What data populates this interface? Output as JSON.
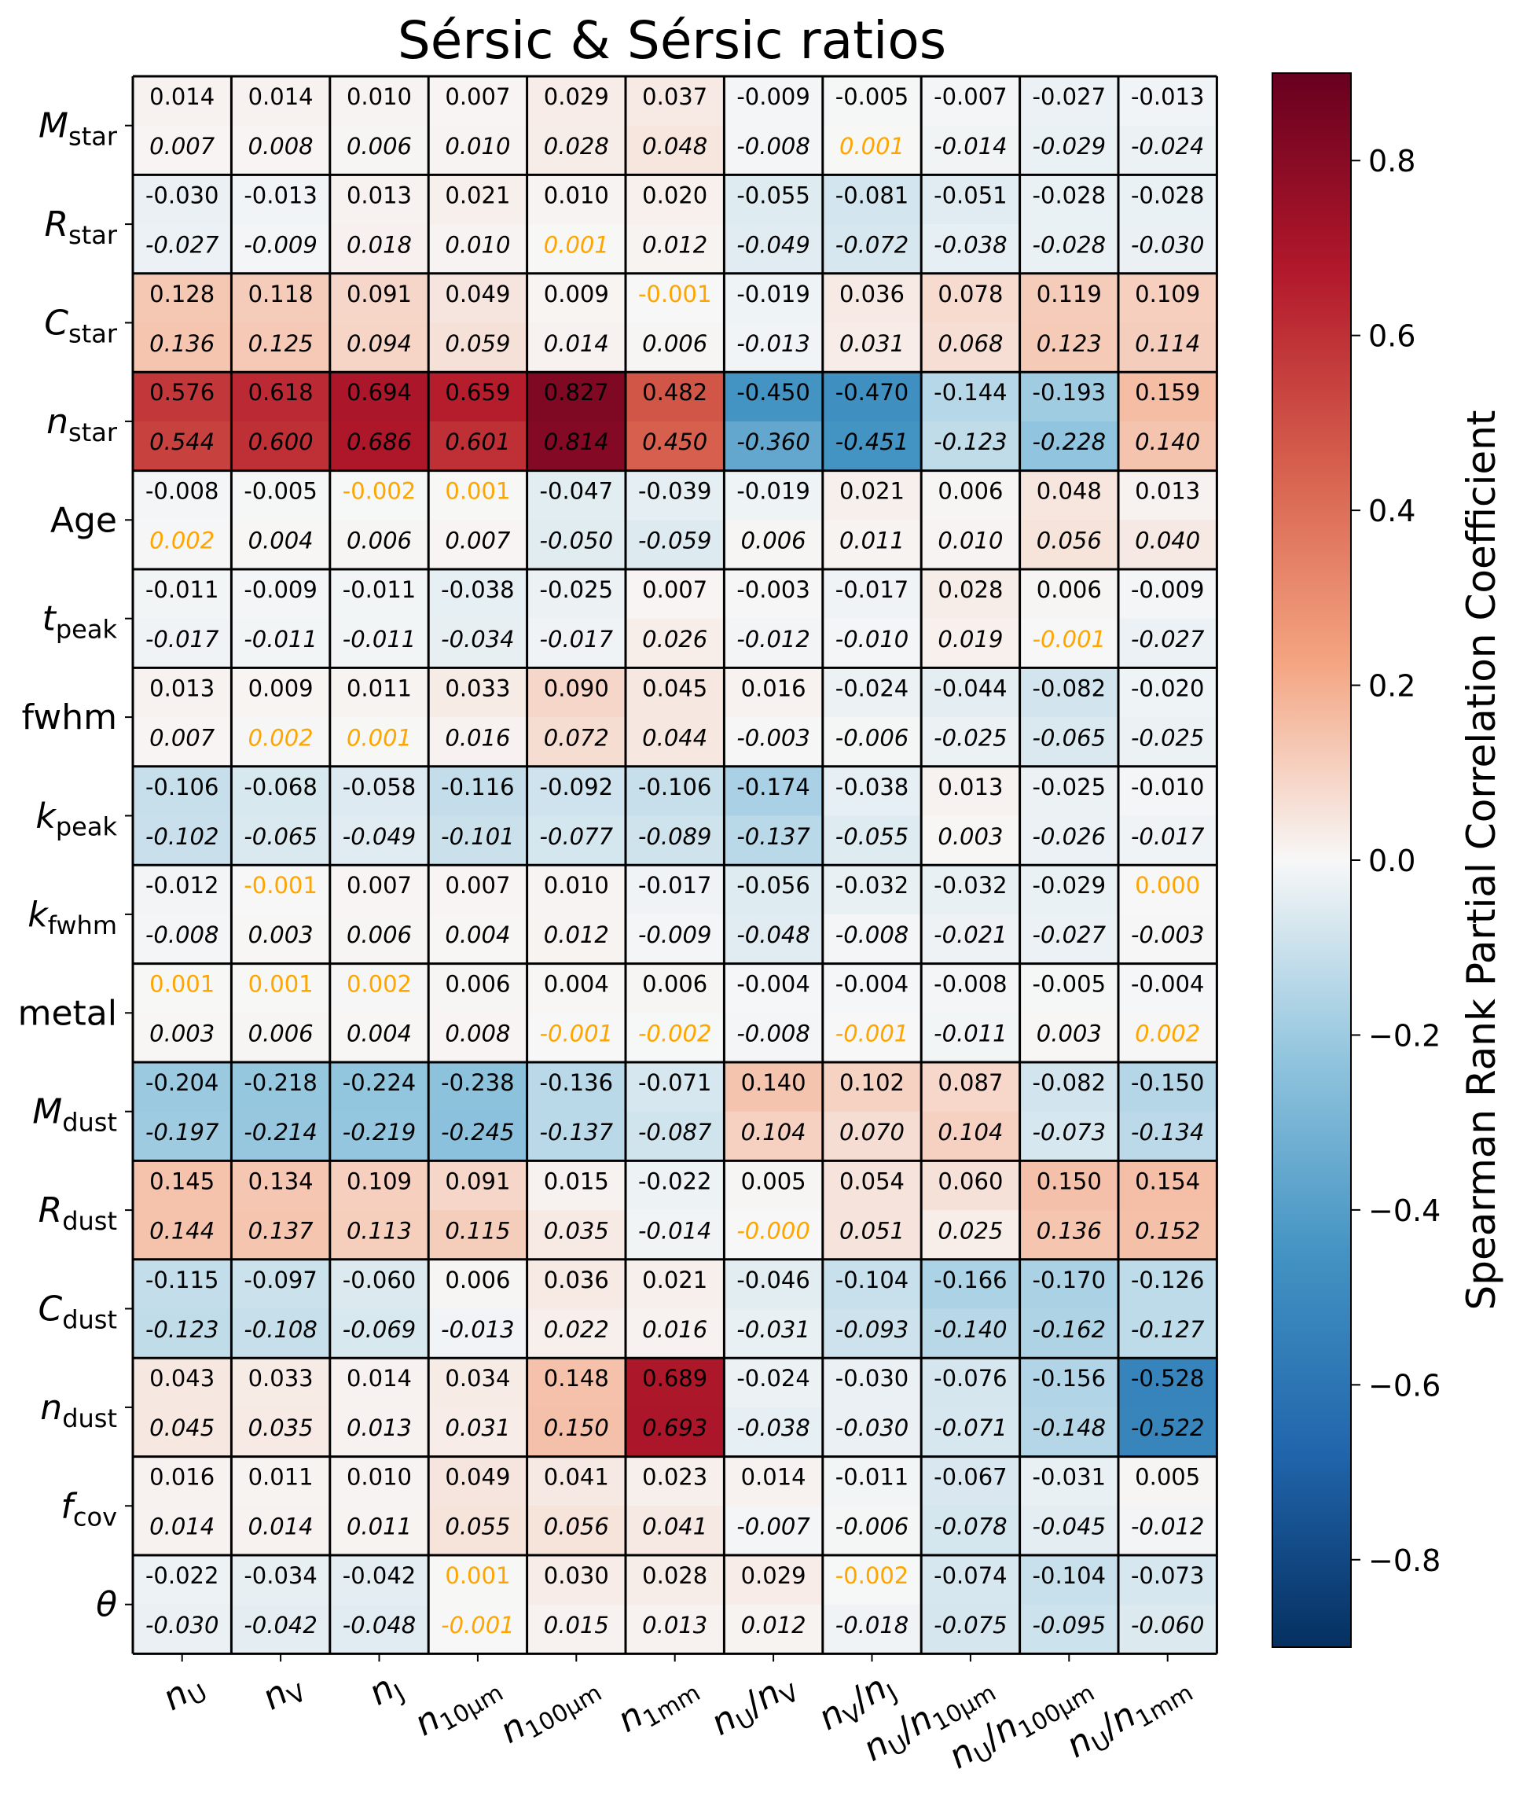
{
  "chart_data": {
    "type": "heatmap",
    "title": "Sérsic & Sérsic ratios",
    "colorbar_label": "Spearman Rank Partial Correlation Coefficient",
    "colorbar_ticks": [
      0.8,
      0.6,
      0.4,
      0.2,
      0.0,
      -0.2,
      -0.4,
      -0.6,
      -0.8
    ],
    "colorbar_tick_labels": [
      "0.8",
      "0.6",
      "0.4",
      "0.2",
      "0.0",
      "−0.2",
      "−0.4",
      "−0.6",
      "−0.8"
    ],
    "color_range": [
      -0.9,
      0.9
    ],
    "colormap": "RdBu_r",
    "highlight_color": "#FFA500",
    "rows": [
      {
        "sym": "M",
        "sub": "star"
      },
      {
        "sym": "R",
        "sub": "star"
      },
      {
        "sym": "C",
        "sub": "star"
      },
      {
        "sym": "n",
        "sub": "star"
      },
      {
        "text": "Age"
      },
      {
        "sym": "t",
        "sub": "peak"
      },
      {
        "text": "fwhm"
      },
      {
        "sym": "k",
        "sub": "peak"
      },
      {
        "sym": "k",
        "sub": "fwhm"
      },
      {
        "text": "metal"
      },
      {
        "sym": "M",
        "sub": "dust"
      },
      {
        "sym": "R",
        "sub": "dust"
      },
      {
        "sym": "C",
        "sub": "dust"
      },
      {
        "sym": "n",
        "sub": "dust"
      },
      {
        "sym": "f",
        "sub": "cov"
      },
      {
        "sym": "θ",
        "sub": ""
      }
    ],
    "columns": [
      {
        "parts": [
          {
            "t": "n",
            "i": true
          },
          {
            "t": "U",
            "s": true
          }
        ]
      },
      {
        "parts": [
          {
            "t": "n",
            "i": true
          },
          {
            "t": "V",
            "s": true
          }
        ]
      },
      {
        "parts": [
          {
            "t": "n",
            "i": true
          },
          {
            "t": "J",
            "s": true
          }
        ]
      },
      {
        "parts": [
          {
            "t": "n",
            "i": true
          },
          {
            "t": "10μm",
            "s": true
          }
        ]
      },
      {
        "parts": [
          {
            "t": "n",
            "i": true
          },
          {
            "t": "100μm",
            "s": true
          }
        ]
      },
      {
        "parts": [
          {
            "t": "n",
            "i": true
          },
          {
            "t": "1mm",
            "s": true
          }
        ]
      },
      {
        "parts": [
          {
            "t": "n",
            "i": true
          },
          {
            "t": "U",
            "s": true
          },
          {
            "t": "/"
          },
          {
            "t": "n",
            "i": true
          },
          {
            "t": "V",
            "s": true
          }
        ]
      },
      {
        "parts": [
          {
            "t": "n",
            "i": true
          },
          {
            "t": "V",
            "s": true
          },
          {
            "t": "/"
          },
          {
            "t": "n",
            "i": true
          },
          {
            "t": "J",
            "s": true
          }
        ]
      },
      {
        "parts": [
          {
            "t": "n",
            "i": true
          },
          {
            "t": "U",
            "s": true
          },
          {
            "t": "/"
          },
          {
            "t": "n",
            "i": true
          },
          {
            "t": "10μm",
            "s": true
          }
        ]
      },
      {
        "parts": [
          {
            "t": "n",
            "i": true
          },
          {
            "t": "U",
            "s": true
          },
          {
            "t": "/"
          },
          {
            "t": "n",
            "i": true
          },
          {
            "t": "100μm",
            "s": true
          }
        ]
      },
      {
        "parts": [
          {
            "t": "n",
            "i": true
          },
          {
            "t": "U",
            "s": true
          },
          {
            "t": "/"
          },
          {
            "t": "n",
            "i": true
          },
          {
            "t": "1mm",
            "s": true
          }
        ]
      }
    ],
    "top_values": [
      [
        "0.014",
        "0.014",
        "0.010",
        "0.007",
        "0.029",
        "0.037",
        "-0.009",
        "-0.005",
        "-0.007",
        "-0.027",
        "-0.013"
      ],
      [
        "-0.030",
        "-0.013",
        "0.013",
        "0.021",
        "0.010",
        "0.020",
        "-0.055",
        "-0.081",
        "-0.051",
        "-0.028",
        "-0.028"
      ],
      [
        "0.128",
        "0.118",
        "0.091",
        "0.049",
        "0.009",
        "-0.001",
        "-0.019",
        "0.036",
        "0.078",
        "0.119",
        "0.109"
      ],
      [
        "0.576",
        "0.618",
        "0.694",
        "0.659",
        "0.827",
        "0.482",
        "-0.450",
        "-0.470",
        "-0.144",
        "-0.193",
        "0.159"
      ],
      [
        "-0.008",
        "-0.005",
        "-0.002",
        "0.001",
        "-0.047",
        "-0.039",
        "-0.019",
        "0.021",
        "0.006",
        "0.048",
        "0.013"
      ],
      [
        "-0.011",
        "-0.009",
        "-0.011",
        "-0.038",
        "-0.025",
        "0.007",
        "-0.003",
        "-0.017",
        "0.028",
        "0.006",
        "-0.009"
      ],
      [
        "0.013",
        "0.009",
        "0.011",
        "0.033",
        "0.090",
        "0.045",
        "0.016",
        "-0.024",
        "-0.044",
        "-0.082",
        "-0.020"
      ],
      [
        "-0.106",
        "-0.068",
        "-0.058",
        "-0.116",
        "-0.092",
        "-0.106",
        "-0.174",
        "-0.038",
        "0.013",
        "-0.025",
        "-0.010"
      ],
      [
        "-0.012",
        "-0.001",
        "0.007",
        "0.007",
        "0.010",
        "-0.017",
        "-0.056",
        "-0.032",
        "-0.032",
        "-0.029",
        "0.000"
      ],
      [
        "0.001",
        "0.001",
        "0.002",
        "0.006",
        "0.004",
        "0.006",
        "-0.004",
        "-0.004",
        "-0.008",
        "-0.005",
        "-0.004"
      ],
      [
        "-0.204",
        "-0.218",
        "-0.224",
        "-0.238",
        "-0.136",
        "-0.071",
        "0.140",
        "0.102",
        "0.087",
        "-0.082",
        "-0.150"
      ],
      [
        "0.145",
        "0.134",
        "0.109",
        "0.091",
        "0.015",
        "-0.022",
        "0.005",
        "0.054",
        "0.060",
        "0.150",
        "0.154"
      ],
      [
        "-0.115",
        "-0.097",
        "-0.060",
        "0.006",
        "0.036",
        "0.021",
        "-0.046",
        "-0.104",
        "-0.166",
        "-0.170",
        "-0.126"
      ],
      [
        "0.043",
        "0.033",
        "0.014",
        "0.034",
        "0.148",
        "0.689",
        "-0.024",
        "-0.030",
        "-0.076",
        "-0.156",
        "-0.528"
      ],
      [
        "0.016",
        "0.011",
        "0.010",
        "0.049",
        "0.041",
        "0.023",
        "0.014",
        "-0.011",
        "-0.067",
        "-0.031",
        "0.005"
      ],
      [
        "-0.022",
        "-0.034",
        "-0.042",
        "0.001",
        "0.030",
        "0.028",
        "0.029",
        "-0.002",
        "-0.074",
        "-0.104",
        "-0.073"
      ]
    ],
    "bottom_values": [
      [
        "0.007",
        "0.008",
        "0.006",
        "0.010",
        "0.028",
        "0.048",
        "-0.008",
        "0.001",
        "-0.014",
        "-0.029",
        "-0.024"
      ],
      [
        "-0.027",
        "-0.009",
        "0.018",
        "0.010",
        "0.001",
        "0.012",
        "-0.049",
        "-0.072",
        "-0.038",
        "-0.028",
        "-0.030"
      ],
      [
        "0.136",
        "0.125",
        "0.094",
        "0.059",
        "0.014",
        "0.006",
        "-0.013",
        "0.031",
        "0.068",
        "0.123",
        "0.114"
      ],
      [
        "0.544",
        "0.600",
        "0.686",
        "0.601",
        "0.814",
        "0.450",
        "-0.360",
        "-0.451",
        "-0.123",
        "-0.228",
        "0.140"
      ],
      [
        "0.002",
        "0.004",
        "0.006",
        "0.007",
        "-0.050",
        "-0.059",
        "0.006",
        "0.011",
        "0.010",
        "0.056",
        "0.040"
      ],
      [
        "-0.017",
        "-0.011",
        "-0.011",
        "-0.034",
        "-0.017",
        "0.026",
        "-0.012",
        "-0.010",
        "0.019",
        "-0.001",
        "-0.027"
      ],
      [
        "0.007",
        "0.002",
        "0.001",
        "0.016",
        "0.072",
        "0.044",
        "-0.003",
        "-0.006",
        "-0.025",
        "-0.065",
        "-0.025"
      ],
      [
        "-0.102",
        "-0.065",
        "-0.049",
        "-0.101",
        "-0.077",
        "-0.089",
        "-0.137",
        "-0.055",
        "0.003",
        "-0.026",
        "-0.017"
      ],
      [
        "-0.008",
        "0.003",
        "0.006",
        "0.004",
        "0.012",
        "-0.009",
        "-0.048",
        "-0.008",
        "-0.021",
        "-0.027",
        "-0.003"
      ],
      [
        "0.003",
        "0.006",
        "0.004",
        "0.008",
        "-0.001",
        "-0.002",
        "-0.008",
        "-0.001",
        "-0.011",
        "0.003",
        "0.002"
      ],
      [
        "-0.197",
        "-0.214",
        "-0.219",
        "-0.245",
        "-0.137",
        "-0.087",
        "0.104",
        "0.070",
        "0.104",
        "-0.073",
        "-0.134"
      ],
      [
        "0.144",
        "0.137",
        "0.113",
        "0.115",
        "0.035",
        "-0.014",
        "-0.000",
        "0.051",
        "0.025",
        "0.136",
        "0.152"
      ],
      [
        "-0.123",
        "-0.108",
        "-0.069",
        "-0.013",
        "0.022",
        "0.016",
        "-0.031",
        "-0.093",
        "-0.140",
        "-0.162",
        "-0.127"
      ],
      [
        "0.045",
        "0.035",
        "0.013",
        "0.031",
        "0.150",
        "0.693",
        "-0.038",
        "-0.030",
        "-0.071",
        "-0.148",
        "-0.522"
      ],
      [
        "0.014",
        "0.014",
        "0.011",
        "0.055",
        "0.056",
        "0.041",
        "-0.007",
        "-0.006",
        "-0.078",
        "-0.045",
        "-0.012"
      ],
      [
        "-0.030",
        "-0.042",
        "-0.048",
        "-0.001",
        "0.015",
        "0.013",
        "0.012",
        "-0.018",
        "-0.075",
        "-0.095",
        "-0.060"
      ]
    ]
  }
}
